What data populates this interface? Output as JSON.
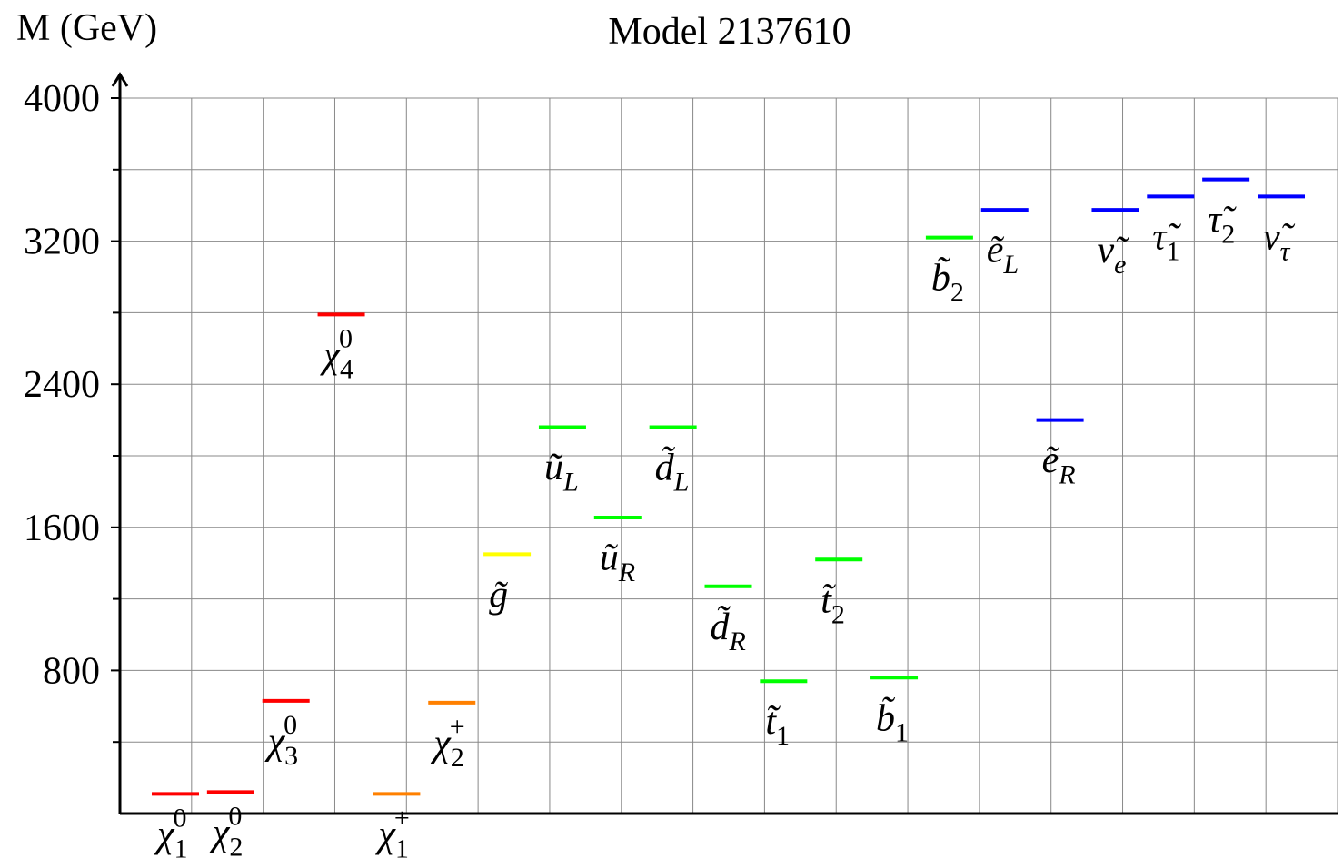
{
  "chart_data": {
    "type": "levels",
    "title": "Model 2137610",
    "ylabel": "M (GeV)",
    "labels": [
      {
        "base": "χ",
        "sub": "1",
        "sup": "0"
      },
      {
        "base": "χ",
        "sub": "2",
        "sup": "0"
      },
      {
        "base": "χ",
        "sub": "3",
        "sup": "0"
      },
      {
        "base": "χ",
        "sub": "4",
        "sup": "0"
      },
      {
        "base": "χ",
        "sub": "1",
        "sup": "+"
      },
      {
        "base": "χ",
        "sub": "2",
        "sup": "+"
      },
      {
        "base": "g̃"
      },
      {
        "base": "ũ",
        "sub": "L"
      },
      {
        "base": "ũ",
        "sub": "R"
      },
      {
        "base": "d̃",
        "sub": "L"
      },
      {
        "base": "d̃",
        "sub": "R"
      },
      {
        "base": "t̃",
        "sub": "1"
      },
      {
        "base": "t̃",
        "sub": "2"
      },
      {
        "base": "b̃",
        "sub": "1"
      },
      {
        "base": "b̃",
        "sub": "2"
      },
      {
        "base": "ẽ",
        "sub": "L"
      },
      {
        "base": "ẽ",
        "sub": "R"
      },
      {
        "base": "ν̃",
        "sub": "e"
      },
      {
        "base": "τ̃",
        "sub": "1"
      },
      {
        "base": "τ̃",
        "sub": "2"
      },
      {
        "base": "ν̃",
        "sub": "τ"
      }
    ],
    "values": [
      110,
      120,
      630,
      2790,
      110,
      620,
      1450,
      2160,
      1655,
      2160,
      1270,
      740,
      1420,
      760,
      3220,
      3375,
      2200,
      3375,
      3450,
      3545,
      3450
    ],
    "colors": [
      "#ff0000",
      "#ff0000",
      "#ff0000",
      "#ff0000",
      "#ff8000",
      "#ff8000",
      "#ffff00",
      "#00ff00",
      "#00ff00",
      "#00ff00",
      "#00ff00",
      "#00ff00",
      "#00ff00",
      "#00ff00",
      "#00ff00",
      "#0000ff",
      "#0000ff",
      "#0000ff",
      "#0000ff",
      "#0000ff",
      "#0000ff"
    ],
    "ylim": [
      0,
      4000
    ],
    "yticks": [
      800,
      1600,
      2400,
      3200,
      4000
    ],
    "minor_yticks": [
      400,
      1200,
      2000,
      2800,
      3600
    ],
    "grid": true
  }
}
